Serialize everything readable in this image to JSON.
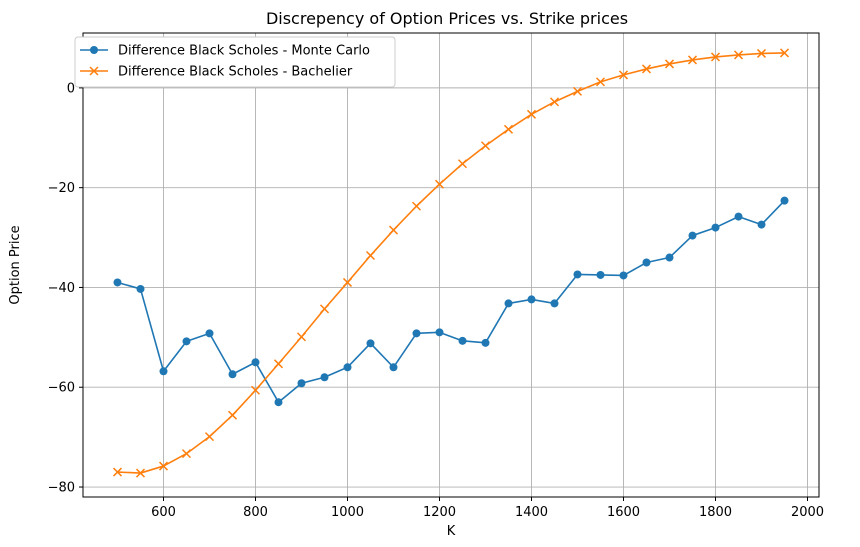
{
  "chart_data": {
    "type": "line",
    "title": "Discrepency of Option Prices vs. Strike prices",
    "xlabel": "K",
    "ylabel": "Option Price",
    "xlim": [
      425,
      2025
    ],
    "ylim": [
      -82,
      11
    ],
    "xticks": [
      600,
      800,
      1000,
      1200,
      1400,
      1600,
      1800,
      2000
    ],
    "yticks": [
      -80,
      -60,
      -40,
      -20,
      0
    ],
    "xtick_labels": [
      "600",
      "800",
      "1000",
      "1200",
      "1400",
      "1600",
      "1800",
      "2000"
    ],
    "ytick_labels": [
      "−80",
      "−60",
      "−40",
      "−20",
      "0"
    ],
    "grid": true,
    "legend_position": "upper-left",
    "x": [
      500,
      550,
      600,
      650,
      700,
      750,
      800,
      850,
      900,
      950,
      1000,
      1050,
      1100,
      1150,
      1200,
      1250,
      1300,
      1350,
      1400,
      1450,
      1500,
      1550,
      1600,
      1650,
      1700,
      1750,
      1800,
      1850,
      1900,
      1950
    ],
    "series": [
      {
        "name": "Difference Black Scholes - Monte Carlo",
        "color": "#1f77b4",
        "marker": "circle",
        "values": [
          -39,
          -40.3,
          -56.8,
          -50.8,
          -49.2,
          -57.4,
          -55,
          -63,
          -59.2,
          -58,
          -56,
          -51.2,
          -56,
          -49.2,
          -49,
          -50.7,
          -51.1,
          -43.2,
          -42.4,
          -43.2,
          -37.4,
          -37.5,
          -37.6,
          -35,
          -34,
          -29.6,
          -28,
          -25.8,
          -27.4,
          -22.6
        ]
      },
      {
        "name": "Difference Black Scholes - Bachelier",
        "color": "#ff7f0e",
        "marker": "x",
        "values": [
          -77,
          -77.2,
          -75.8,
          -73.3,
          -69.9,
          -65.6,
          -60.6,
          -55.3,
          -49.9,
          -44.3,
          -39,
          -33.6,
          -28.5,
          -23.7,
          -19.3,
          -15.2,
          -11.6,
          -8.3,
          -5.3,
          -2.8,
          -0.7,
          1.2,
          2.6,
          3.8,
          4.8,
          5.6,
          6.2,
          6.6,
          6.9,
          7
        ]
      }
    ]
  }
}
